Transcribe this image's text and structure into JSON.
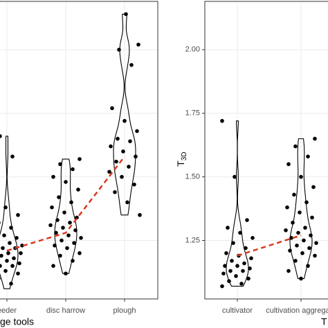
{
  "chart_data": [
    {
      "type": "violin",
      "x_label": "ge tools",
      "categories": [
        "eeder",
        "disc harrow",
        "plough"
      ],
      "values": [
        [
          1.06,
          1.08,
          1.1,
          1.12,
          1.13,
          1.14,
          1.15,
          1.15,
          1.16,
          1.17,
          1.18,
          1.18,
          1.19,
          1.2,
          1.2,
          1.21,
          1.22,
          1.22,
          1.23,
          1.24,
          1.25,
          1.26,
          1.27,
          1.28,
          1.3,
          1.32,
          1.35,
          1.38,
          1.42,
          1.58,
          1.66
        ],
        [
          1.12,
          1.15,
          1.17,
          1.19,
          1.2,
          1.22,
          1.23,
          1.24,
          1.25,
          1.26,
          1.27,
          1.28,
          1.29,
          1.3,
          1.31,
          1.32,
          1.33,
          1.34,
          1.36,
          1.38,
          1.4,
          1.42,
          1.45,
          1.48,
          1.5,
          1.53,
          1.55,
          1.57
        ],
        [
          1.35,
          1.4,
          1.44,
          1.47,
          1.5,
          1.52,
          1.54,
          1.56,
          1.58,
          1.6,
          1.62,
          1.64,
          1.65,
          1.68,
          1.72,
          1.77,
          1.94,
          2.0,
          2.02,
          2.14
        ]
      ],
      "means": [
        1.21,
        1.28,
        1.58
      ],
      "ylim": [
        1.02,
        2.19
      ],
      "ygrid": [
        1.25,
        1.5,
        1.75,
        2.0
      ],
      "grid": true,
      "point_color": "#000000",
      "trend_color": "#d9381e"
    },
    {
      "type": "violin",
      "x_label": "T",
      "y_label": "T",
      "y_label_sub": "3D",
      "categories": [
        "cultivator",
        "cultivation aggregate"
      ],
      "values": [
        [
          1.07,
          1.08,
          1.09,
          1.1,
          1.11,
          1.12,
          1.13,
          1.13,
          1.14,
          1.15,
          1.15,
          1.16,
          1.17,
          1.18,
          1.19,
          1.2,
          1.22,
          1.24,
          1.26,
          1.28,
          1.3,
          1.33,
          1.5,
          1.72
        ],
        [
          1.1,
          1.13,
          1.15,
          1.17,
          1.19,
          1.2,
          1.21,
          1.22,
          1.23,
          1.24,
          1.25,
          1.26,
          1.27,
          1.28,
          1.29,
          1.3,
          1.32,
          1.34,
          1.36,
          1.38,
          1.4,
          1.43,
          1.46,
          1.5,
          1.55,
          1.58,
          1.62,
          1.65
        ]
      ],
      "means": [
        1.19,
        1.27
      ],
      "ylim": [
        1.02,
        2.19
      ],
      "yticks": [
        {
          "value": 1.25,
          "label": "1.25"
        },
        {
          "value": 1.5,
          "label": "1.50"
        },
        {
          "value": 1.75,
          "label": "1.75"
        },
        {
          "value": 2.0,
          "label": "2.00"
        }
      ],
      "grid": true,
      "point_color": "#000000",
      "trend_color": "#d9381e"
    }
  ]
}
